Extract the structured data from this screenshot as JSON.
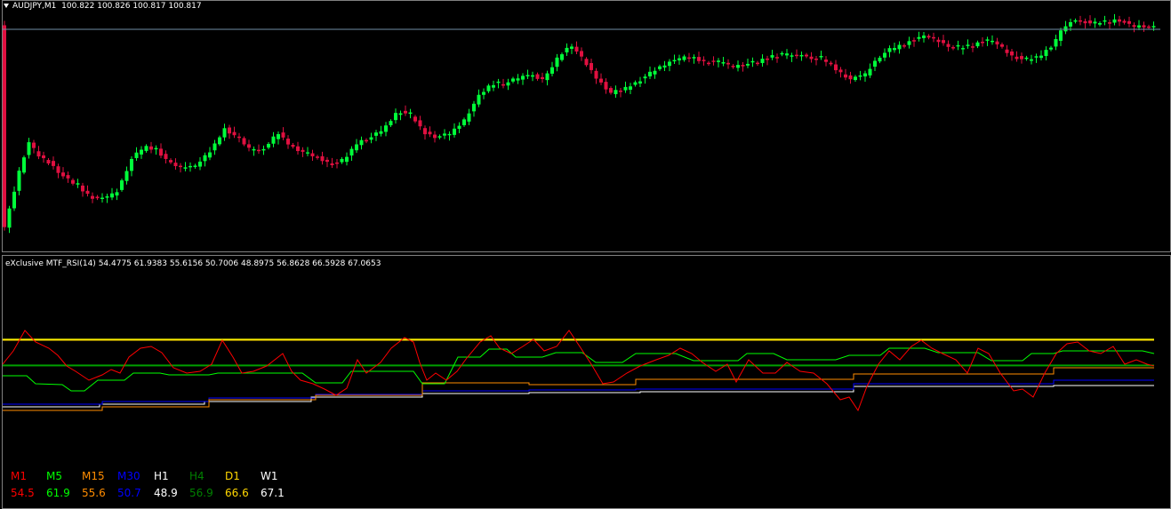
{
  "main_chart": {
    "symbol": "AUDJPY,M1",
    "ohlc": "100.822 100.826 100.817 100.817",
    "current_price": 100.817,
    "bull_color": "#00ff3a",
    "bear_color": "#e01040",
    "price_line_color": "#6f8ea6",
    "menu_icon": "triangle-down-icon"
  },
  "indicator": {
    "title": "eXclusive MTF_RSI(14)",
    "values_text": "54.4775 61.9383 55.6156 50.7006 48.8975 56.8628 66.5928 67.0653",
    "level_high_color": "#ffff00",
    "level_mid_color": "#00c000",
    "timeframes": [
      {
        "name": "M1",
        "value": "54.5",
        "color": "#ff0000"
      },
      {
        "name": "M5",
        "value": "61.9",
        "color": "#00ff00"
      },
      {
        "name": "M15",
        "value": "55.6",
        "color": "#ff8c00"
      },
      {
        "name": "M30",
        "value": "50.7",
        "color": "#0000ff"
      },
      {
        "name": "H1",
        "value": "48.9",
        "color": "#ffffff"
      },
      {
        "name": "H4",
        "value": "56.9",
        "color": "#008000"
      },
      {
        "name": "D1",
        "value": "66.6",
        "color": "#ffd700"
      },
      {
        "name": "W1",
        "value": "67.1",
        "color": "#ffffff"
      }
    ]
  }
}
